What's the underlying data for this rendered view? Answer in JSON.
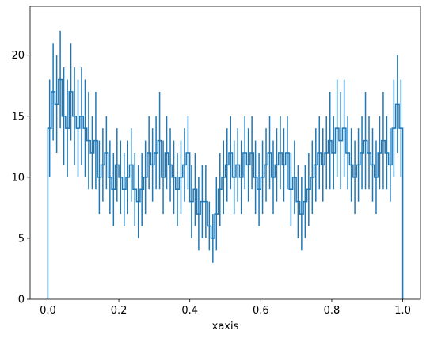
{
  "chart_data": {
    "type": "histogram-step",
    "title": "",
    "xlabel": "xaxis",
    "ylabel": "",
    "xlim": [
      -0.05,
      1.05
    ],
    "ylim": [
      0,
      24
    ],
    "xticks": [
      0.0,
      0.2,
      0.4,
      0.6,
      0.8,
      1.0
    ],
    "xtick_labels": [
      "0.0",
      "0.2",
      "0.4",
      "0.6",
      "0.8",
      "1.0"
    ],
    "yticks": [
      0,
      5,
      10,
      15,
      20
    ],
    "ytick_labels": [
      "0",
      "5",
      "10",
      "15",
      "20"
    ],
    "grid": false,
    "legend": "none",
    "color": "#1f77b4",
    "bin_range": [
      0.0,
      1.0
    ],
    "bin_count": 100,
    "values": [
      14,
      17,
      16,
      18,
      15,
      14,
      17,
      15,
      14,
      15,
      14,
      13,
      12,
      13,
      10,
      11,
      12,
      10,
      9,
      11,
      10,
      9,
      10,
      11,
      9,
      8,
      9,
      10,
      12,
      11,
      12,
      13,
      10,
      12,
      11,
      10,
      9,
      10,
      11,
      12,
      8,
      9,
      7,
      8,
      8,
      6,
      5,
      7,
      9,
      10,
      11,
      12,
      10,
      11,
      10,
      12,
      11,
      12,
      10,
      9,
      10,
      11,
      12,
      10,
      11,
      12,
      11,
      12,
      9,
      10,
      8,
      7,
      8,
      9,
      10,
      11,
      12,
      11,
      12,
      13,
      12,
      14,
      13,
      14,
      12,
      11,
      10,
      11,
      12,
      13,
      12,
      11,
      10,
      12,
      13,
      12,
      11,
      14,
      16,
      14
    ],
    "errors": [
      4,
      4,
      4,
      4,
      4,
      4,
      4,
      4,
      4,
      4,
      4,
      4,
      3,
      4,
      3,
      3,
      3,
      3,
      3,
      3,
      3,
      3,
      3,
      3,
      3,
      3,
      3,
      3,
      3,
      3,
      3,
      4,
      3,
      3,
      3,
      3,
      3,
      3,
      3,
      3,
      3,
      3,
      3,
      3,
      3,
      2,
      2,
      3,
      3,
      3,
      3,
      3,
      3,
      3,
      3,
      3,
      3,
      3,
      3,
      3,
      3,
      3,
      3,
      3,
      3,
      3,
      3,
      3,
      3,
      3,
      3,
      3,
      3,
      3,
      3,
      3,
      3,
      3,
      3,
      4,
      3,
      4,
      4,
      4,
      3,
      3,
      3,
      3,
      3,
      4,
      3,
      3,
      3,
      3,
      4,
      3,
      3,
      4,
      4,
      4
    ]
  }
}
